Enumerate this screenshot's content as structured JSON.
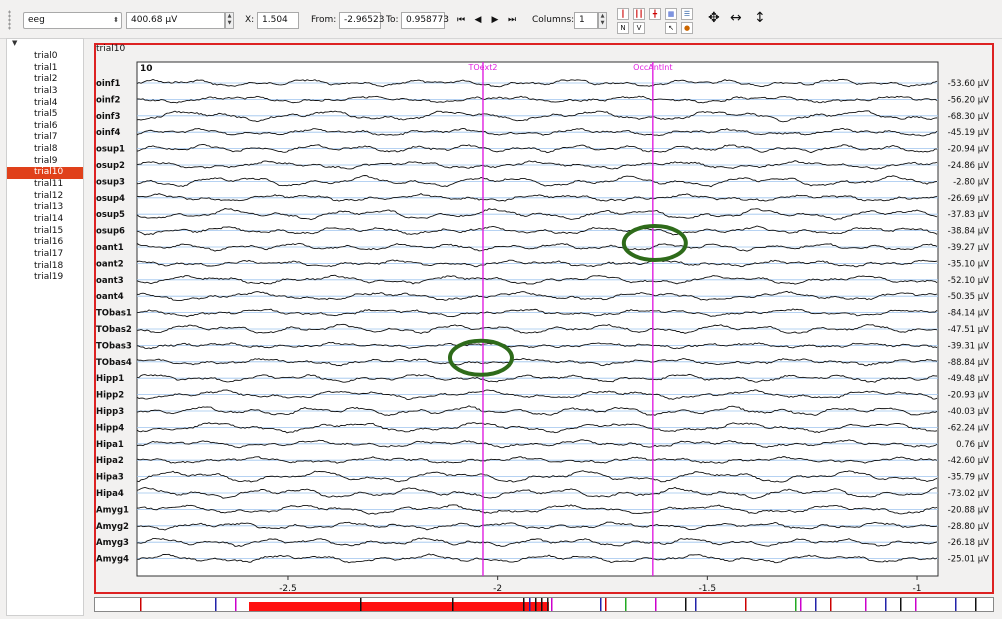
{
  "toolbar": {
    "modality": "eeg",
    "scale": "400.68 µV",
    "x_label": "X:",
    "x_value": "1.504",
    "from_label": "From:",
    "from_value": "-2.96523",
    "to_label": "To:",
    "to_value": "0.958773",
    "columns_label": "Columns:",
    "columns_value": "1",
    "tool_labels": [
      "N",
      "V"
    ]
  },
  "trials": [
    "trial0",
    "trial1",
    "trial2",
    "trial3",
    "trial4",
    "trial5",
    "trial6",
    "trial7",
    "trial8",
    "trial9",
    "trial10",
    "trial11",
    "trial12",
    "trial13",
    "trial14",
    "trial15",
    "trial16",
    "trial17",
    "trial18",
    "trial19"
  ],
  "selected_trial": 10,
  "plot": {
    "window_title": "trial10",
    "panel_label": "10",
    "marker_color": "#e020e0",
    "frame_color": "#dd2222",
    "annotation_color": "#2e6b1a"
  },
  "chart_data": {
    "type": "line",
    "x_ticks": [
      "-2.5",
      "-2",
      "-1.5",
      "-1"
    ],
    "xlim": [
      -2.96523,
      0.958773
    ],
    "events": [
      {
        "label": "TOext2",
        "x": -2.035
      },
      {
        "label": "OccAntInt",
        "x": -1.63
      }
    ],
    "channels": [
      {
        "name": "oinf1",
        "offset": "-53.60 µV"
      },
      {
        "name": "oinf2",
        "offset": "-56.20 µV"
      },
      {
        "name": "oinf3",
        "offset": "-68.30 µV"
      },
      {
        "name": "oinf4",
        "offset": "-45.19 µV"
      },
      {
        "name": "osup1",
        "offset": "-20.94 µV"
      },
      {
        "name": "osup2",
        "offset": "-24.86 µV"
      },
      {
        "name": "osup3",
        "offset": "-2.80 µV"
      },
      {
        "name": "osup4",
        "offset": "-26.69 µV"
      },
      {
        "name": "osup5",
        "offset": "-37.83 µV"
      },
      {
        "name": "osup6",
        "offset": "-38.84 µV"
      },
      {
        "name": "oant1",
        "offset": "-39.27 µV"
      },
      {
        "name": "oant2",
        "offset": "-35.10 µV"
      },
      {
        "name": "oant3",
        "offset": "-52.10 µV"
      },
      {
        "name": "oant4",
        "offset": "-50.35 µV"
      },
      {
        "name": "TObas1",
        "offset": "-84.14 µV"
      },
      {
        "name": "TObas2",
        "offset": "-47.51 µV"
      },
      {
        "name": "TObas3",
        "offset": "-39.31 µV"
      },
      {
        "name": "TObas4",
        "offset": "-88.84 µV"
      },
      {
        "name": "Hipp1",
        "offset": "-49.48 µV"
      },
      {
        "name": "Hipp2",
        "offset": "-20.93 µV"
      },
      {
        "name": "Hipp3",
        "offset": "-40.03 µV"
      },
      {
        "name": "Hipp4",
        "offset": "-62.24 µV"
      },
      {
        "name": "Hipa1",
        "offset": "0.76 µV"
      },
      {
        "name": "Hipa2",
        "offset": "-42.60 µV"
      },
      {
        "name": "Hipa3",
        "offset": "-35.79 µV"
      },
      {
        "name": "Hipa4",
        "offset": "-73.02 µV"
      },
      {
        "name": "Amyg1",
        "offset": "-20.88 µV"
      },
      {
        "name": "Amyg2",
        "offset": "-28.80 µV"
      },
      {
        "name": "Amyg3",
        "offset": "-26.18 µV"
      },
      {
        "name": "Amyg4",
        "offset": "-25.01 µV"
      }
    ]
  }
}
